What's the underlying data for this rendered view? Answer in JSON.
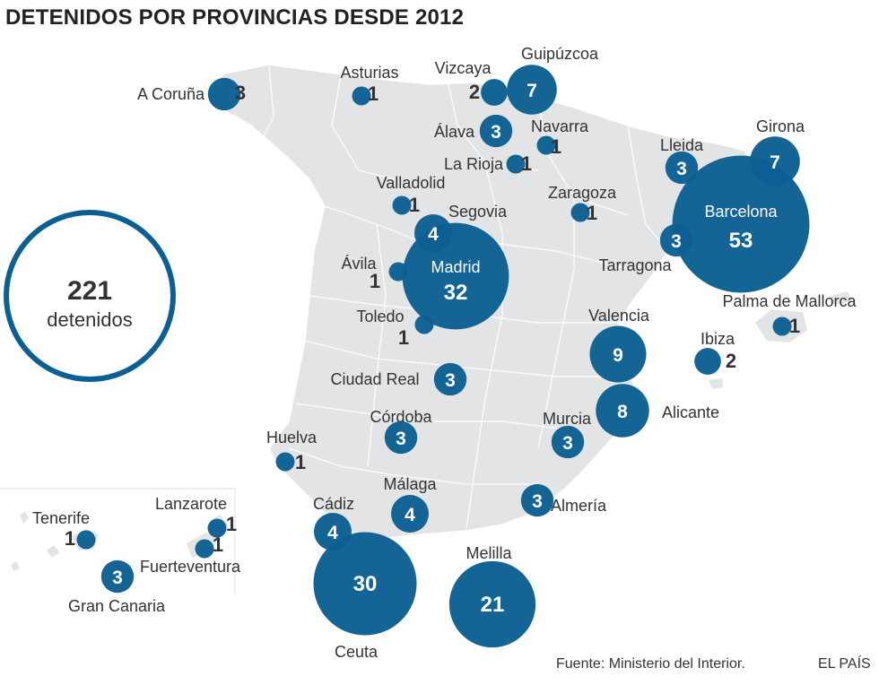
{
  "title": "DETENIDOS POR PROVINCIAS DESDE 2012",
  "total": {
    "value": "221",
    "label": "detenidos"
  },
  "source": "Fuente: Ministerio del Interior.",
  "credit": "EL PAÍS",
  "colors": {
    "bubble": "#0d5f93",
    "overlap": "#0a3f6b",
    "land": "#e3e4e6",
    "text": "#333333",
    "total_ring": "#0d5f93"
  },
  "provinces": [
    {
      "name": "A Coruña",
      "count": 3
    },
    {
      "name": "Asturias",
      "count": 1
    },
    {
      "name": "Vizcaya",
      "count": 2
    },
    {
      "name": "Guipúzcoa",
      "count": 7
    },
    {
      "name": "Álava",
      "count": 3
    },
    {
      "name": "Navarra",
      "count": 1
    },
    {
      "name": "La Rioja",
      "count": 1
    },
    {
      "name": "Valladolid",
      "count": 1
    },
    {
      "name": "Segovia",
      "count": 4
    },
    {
      "name": "Zaragoza",
      "count": 1
    },
    {
      "name": "Lleida",
      "count": 3
    },
    {
      "name": "Girona",
      "count": 7
    },
    {
      "name": "Barcelona",
      "count": 53
    },
    {
      "name": "Tarragona",
      "count": 3
    },
    {
      "name": "Madrid",
      "count": 32
    },
    {
      "name": "Ávila",
      "count": 1
    },
    {
      "name": "Toledo",
      "count": 1
    },
    {
      "name": "Palma de Mallorca",
      "count": 1
    },
    {
      "name": "Valencia",
      "count": 9
    },
    {
      "name": "Ibiza",
      "count": 2
    },
    {
      "name": "Ciudad Real",
      "count": 3
    },
    {
      "name": "Alicante",
      "count": 8
    },
    {
      "name": "Córdoba",
      "count": 3
    },
    {
      "name": "Murcia",
      "count": 3
    },
    {
      "name": "Huelva",
      "count": 1
    },
    {
      "name": "Málaga",
      "count": 4
    },
    {
      "name": "Almería",
      "count": 3
    },
    {
      "name": "Cádiz",
      "count": 4
    },
    {
      "name": "Ceuta",
      "count": 30
    },
    {
      "name": "Melilla",
      "count": 21
    },
    {
      "name": "Tenerife",
      "count": 1
    },
    {
      "name": "Lanzarote",
      "count": 1
    },
    {
      "name": "Fuerteventura",
      "count": 1
    },
    {
      "name": "Gran Canaria",
      "count": 3
    }
  ]
}
